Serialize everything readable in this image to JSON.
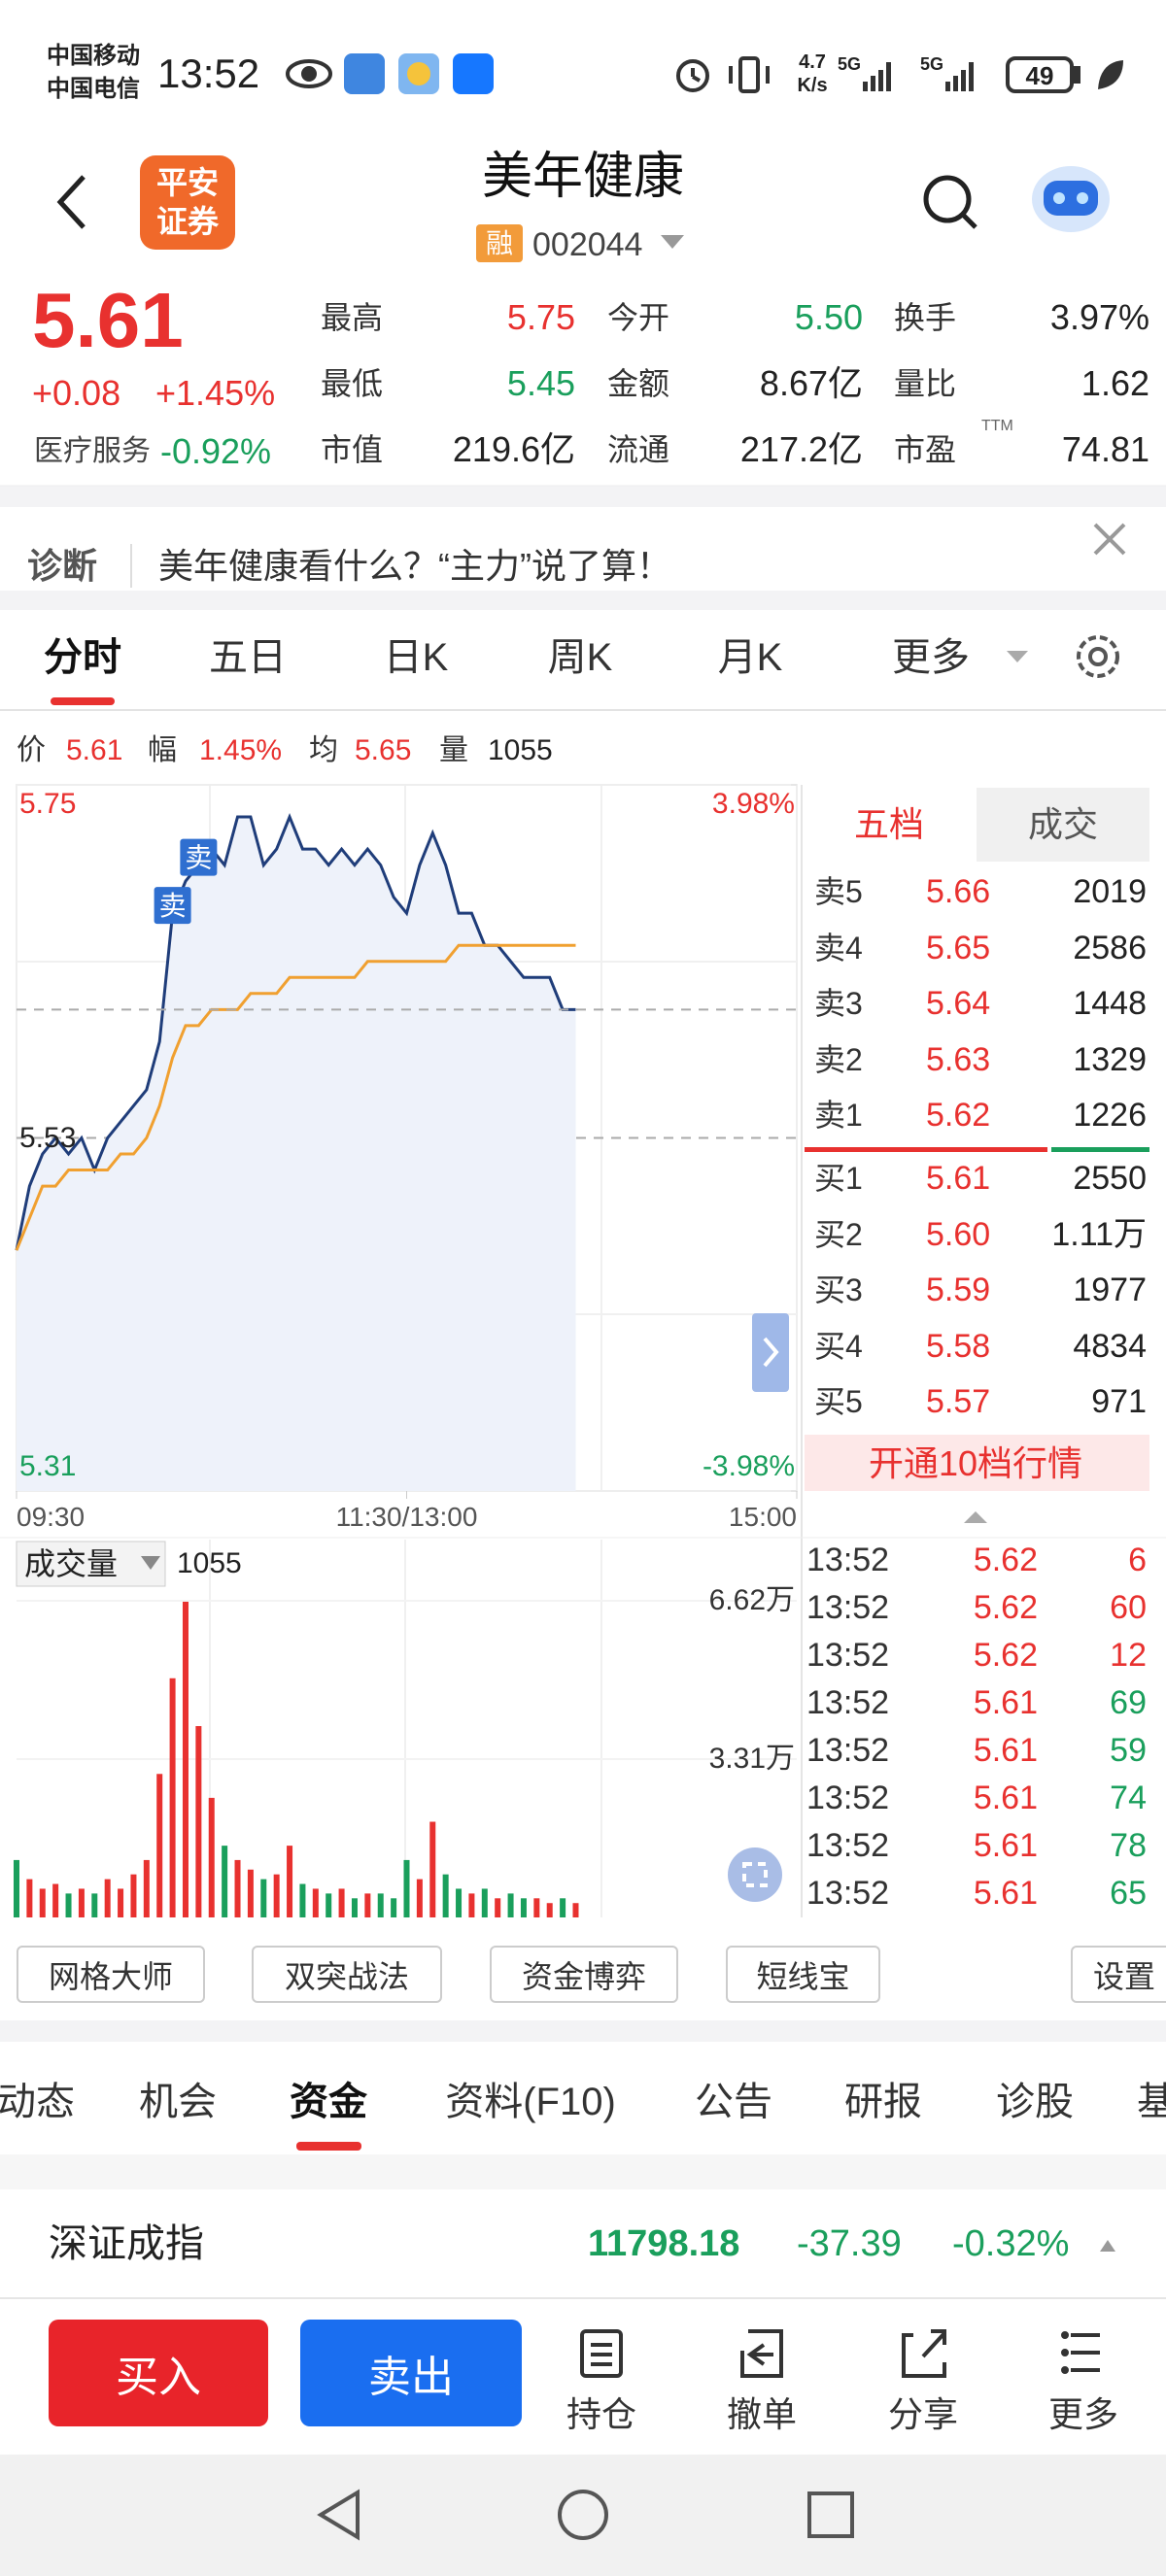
{
  "status_bar": {
    "carrier_1": "中国移动",
    "carrier_2": "中国电信",
    "time": "13:52",
    "net_speed_value": "4.7",
    "net_speed_unit": "K/s",
    "signal_1": "5G",
    "signal_2": "5G",
    "battery": "49"
  },
  "header": {
    "logo_line_1": "平安",
    "logo_line_2": "证券",
    "title": "美年健康",
    "margin_tag": "融",
    "code": "002044"
  },
  "quote": {
    "price": "5.61",
    "change": "+0.08",
    "change_pct": "+1.45%",
    "sector": "医疗服务",
    "sector_change": "-0.92%",
    "stats": [
      {
        "label": "最高",
        "value": "5.75"
      },
      {
        "label": "今开",
        "value": "5.50"
      },
      {
        "label": "换手",
        "value": "3.97%"
      },
      {
        "label": "最低",
        "value": "5.45"
      },
      {
        "label": "金额",
        "value": "8.67亿"
      },
      {
        "label": "量比",
        "value": "1.62"
      },
      {
        "label": "市值",
        "value": "219.6亿"
      },
      {
        "label": "流通",
        "value": "217.2亿"
      },
      {
        "label": "市盈",
        "value": "74.81",
        "superscript": "TTM"
      }
    ]
  },
  "diagnosis": {
    "label": "诊断",
    "text": "美年健康看什么？“主力”说了算！"
  },
  "chart_tabs": [
    "分时",
    "五日",
    "日K",
    "周K",
    "月K",
    "更多"
  ],
  "info_line": {
    "price_label": "价",
    "price": "5.61",
    "range_label": "幅",
    "range": "1.45%",
    "avg_label": "均",
    "avg": "5.65",
    "volume_label": "量",
    "volume": "1055"
  },
  "chart_data": [
    {
      "type": "line",
      "x": [
        0,
        4,
        8,
        12,
        16,
        20,
        24,
        28,
        32,
        36,
        40,
        44,
        48,
        52,
        56,
        60,
        64,
        68,
        72,
        76,
        80,
        84,
        88,
        92,
        96,
        100,
        104,
        108,
        112,
        116,
        120,
        124,
        128,
        132,
        136,
        140,
        144,
        148,
        152,
        156,
        160,
        164,
        168,
        172
      ],
      "xlim": [
        0,
        240
      ],
      "xticks": [
        {
          "value": 0,
          "label": "09:30"
        },
        {
          "value": 120,
          "label": "11:30/13:00"
        },
        {
          "value": 240,
          "label": "15:00"
        }
      ],
      "ylim": [
        5.31,
        5.75
      ],
      "yticks": [
        5.75,
        5.53,
        5.31
      ],
      "y2lim": [
        -3.98,
        3.98
      ],
      "y2ticks": [
        {
          "value": 3.98,
          "label": "3.98%"
        },
        {
          "value": -3.98,
          "label": "-3.98%"
        }
      ],
      "series": [
        {
          "color": "#1f3d7a",
          "values": [
            5.46,
            5.5,
            5.52,
            5.53,
            5.52,
            5.53,
            5.51,
            5.53,
            5.54,
            5.55,
            5.56,
            5.59,
            5.67,
            5.69,
            5.7,
            5.71,
            5.7,
            5.73,
            5.73,
            5.7,
            5.71,
            5.73,
            5.71,
            5.71,
            5.7,
            5.71,
            5.7,
            5.71,
            5.7,
            5.68,
            5.67,
            5.7,
            5.72,
            5.7,
            5.67,
            5.67,
            5.65,
            5.65,
            5.64,
            5.63,
            5.63,
            5.63,
            5.61,
            5.61
          ]
        },
        {
          "color": "#f0a030",
          "values": [
            5.46,
            5.48,
            5.5,
            5.5,
            5.51,
            5.51,
            5.51,
            5.51,
            5.52,
            5.52,
            5.53,
            5.55,
            5.58,
            5.6,
            5.6,
            5.61,
            5.61,
            5.61,
            5.62,
            5.62,
            5.62,
            5.63,
            5.63,
            5.63,
            5.63,
            5.63,
            5.63,
            5.64,
            5.64,
            5.64,
            5.64,
            5.64,
            5.64,
            5.64,
            5.65,
            5.65,
            5.65,
            5.65,
            5.65,
            5.65,
            5.65,
            5.65,
            5.65,
            5.65
          ]
        }
      ],
      "annotations": [
        {
          "text": "卖",
          "x": 56
        },
        {
          "text": "卖",
          "x": 48
        }
      ]
    },
    {
      "type": "bar",
      "title": "成交量",
      "value_label": "1055",
      "x": [
        0,
        4,
        8,
        12,
        16,
        20,
        24,
        28,
        32,
        36,
        40,
        44,
        48,
        52,
        56,
        60,
        64,
        68,
        72,
        76,
        80,
        84,
        88,
        92,
        96,
        100,
        104,
        108,
        112,
        116,
        120,
        124,
        128,
        132,
        136,
        140,
        144,
        148,
        152,
        156,
        160,
        164,
        168,
        172
      ],
      "xlim": [
        0,
        240
      ],
      "values": [
        12000,
        8000,
        6000,
        7000,
        5000,
        6000,
        5000,
        8000,
        6000,
        9000,
        12000,
        30000,
        50000,
        66000,
        40000,
        25000,
        15000,
        12000,
        10000,
        8000,
        9000,
        15000,
        7000,
        6000,
        5000,
        6000,
        4000,
        5000,
        5000,
        4000,
        12000,
        8000,
        20000,
        9000,
        6000,
        5000,
        6000,
        4000,
        5000,
        4000,
        4000,
        3000,
        4000,
        3000
      ],
      "ylim": [
        0,
        66200
      ],
      "yticks": [
        {
          "value": 66200,
          "label": "6.62万"
        },
        {
          "value": 33100,
          "label": "3.31万"
        }
      ],
      "colors": {
        "up": "#e8312f",
        "down": "#1a9f5c"
      }
    }
  ],
  "order_book": {
    "tabs": [
      "五档",
      "成交"
    ],
    "rows": [
      [
        "卖5",
        "5.66",
        "2019"
      ],
      [
        "卖4",
        "5.65",
        "2586"
      ],
      [
        "卖3",
        "5.64",
        "1448"
      ],
      [
        "卖2",
        "5.63",
        "1329"
      ],
      [
        "卖1",
        "5.62",
        "1226"
      ],
      [
        "买1",
        "5.61",
        "2550"
      ],
      [
        "买2",
        "5.60",
        "1.11万"
      ],
      [
        "买3",
        "5.59",
        "1977"
      ],
      [
        "买4",
        "5.58",
        "4834"
      ],
      [
        "买5",
        "5.57",
        "971"
      ]
    ],
    "upgrade": "开通10档行情"
  },
  "trades": [
    [
      "13:52",
      "5.62",
      "6"
    ],
    [
      "13:52",
      "5.62",
      "60"
    ],
    [
      "13:52",
      "5.62",
      "12"
    ],
    [
      "13:52",
      "5.61",
      "69"
    ],
    [
      "13:52",
      "5.61",
      "59"
    ],
    [
      "13:52",
      "5.61",
      "74"
    ],
    [
      "13:52",
      "5.61",
      "78"
    ],
    [
      "13:52",
      "5.61",
      "65"
    ]
  ],
  "tools": [
    "网格大师",
    "双突战法",
    "资金博弈",
    "短线宝",
    "设置"
  ],
  "bottom_tabs": [
    "动态",
    "机会",
    "资金",
    "资料(F10)",
    "公告",
    "研报",
    "诊股",
    "基"
  ],
  "index_bar": {
    "name": "深证成指",
    "value": "11798.18",
    "change": "-37.39",
    "change_pct": "-0.32%"
  },
  "actions": {
    "buy": "买入",
    "sell": "卖出",
    "items": [
      "持仓",
      "撤单",
      "分享",
      "更多"
    ]
  }
}
